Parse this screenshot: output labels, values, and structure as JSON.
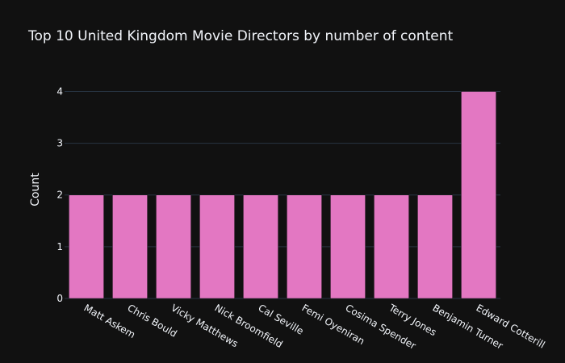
{
  "chart_data": {
    "type": "bar",
    "title": "Top 10 United Kingdom Movie Directors by number of content",
    "xlabel": "",
    "ylabel": "Count",
    "categories": [
      "Matt Askem",
      "Chris Bould",
      "Vicky Matthews",
      "Nick Broomfield",
      "Cal Seville",
      "Femi Oyeniran",
      "Cosima Spender",
      "Terry Jones",
      "Benjamin Turner",
      "Edward Cotterill"
    ],
    "values": [
      2,
      2,
      2,
      2,
      2,
      2,
      2,
      2,
      2,
      4
    ],
    "ylim": [
      0,
      4.21
    ],
    "yticks": [
      0,
      1,
      2,
      3,
      4
    ],
    "grid": true,
    "legend": "none",
    "colors": {
      "background": "#111111",
      "bar": "#e377c2",
      "bar_outline": "#111111",
      "grid": "#283442",
      "text": "#f2f5fa"
    }
  }
}
